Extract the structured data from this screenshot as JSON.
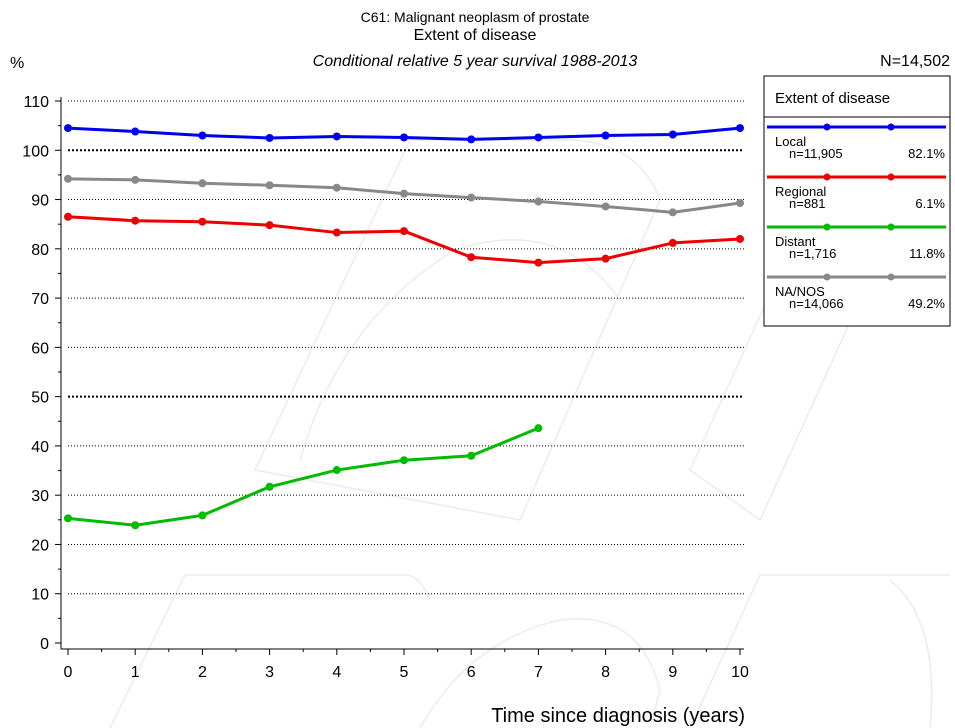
{
  "chart_data": {
    "type": "line",
    "title_line1": "C61: Malignant neoplasm of prostate",
    "title_line2": "Extent of disease",
    "subtitle": "Conditional relative 5 year survival 1988-2013",
    "n_total": "N=14,502",
    "ylabel": "%",
    "xlabel": "Time since diagnosis (years)",
    "x": [
      0,
      1,
      2,
      3,
      4,
      5,
      6,
      7,
      8,
      9,
      10
    ],
    "xlim": [
      0,
      10
    ],
    "ylim": [
      0,
      110
    ],
    "y_ticks": [
      0,
      10,
      20,
      30,
      40,
      50,
      60,
      70,
      80,
      90,
      100,
      110
    ],
    "bold_gridlines": [
      50,
      100
    ],
    "grid": true,
    "watermark": "background graphic",
    "legend": {
      "title": "Extent of disease",
      "placement": "right",
      "entries": [
        {
          "name": "Local",
          "n": "n=11,905",
          "pct": "82.1%"
        },
        {
          "name": "Regional",
          "n": "n=881",
          "pct": "6.1%"
        },
        {
          "name": "Distant",
          "n": "n=1,716",
          "pct": "11.8%"
        },
        {
          "name": "NA/NOS",
          "n": "n=14,066",
          "pct": "49.2%"
        }
      ]
    },
    "series": [
      {
        "name": "Local",
        "color": "#0000ee",
        "values": [
          104.5,
          103.8,
          103.0,
          102.5,
          102.8,
          102.6,
          102.2,
          102.6,
          103.0,
          103.2,
          104.5
        ]
      },
      {
        "name": "Regional",
        "color": "#ee0000",
        "values": [
          86.5,
          85.7,
          85.5,
          84.8,
          83.3,
          83.6,
          78.3,
          77.2,
          78.0,
          81.2,
          82.0
        ]
      },
      {
        "name": "Distant",
        "color": "#00bb00",
        "values": [
          25.3,
          23.9,
          25.9,
          31.7,
          35.1,
          37.1,
          38.0,
          43.6,
          null,
          null,
          null
        ]
      },
      {
        "name": "NA/NOS",
        "color": "#888888",
        "values": [
          94.2,
          94.0,
          93.3,
          92.9,
          92.4,
          91.2,
          90.4,
          89.6,
          88.6,
          87.4,
          89.3
        ]
      }
    ]
  }
}
